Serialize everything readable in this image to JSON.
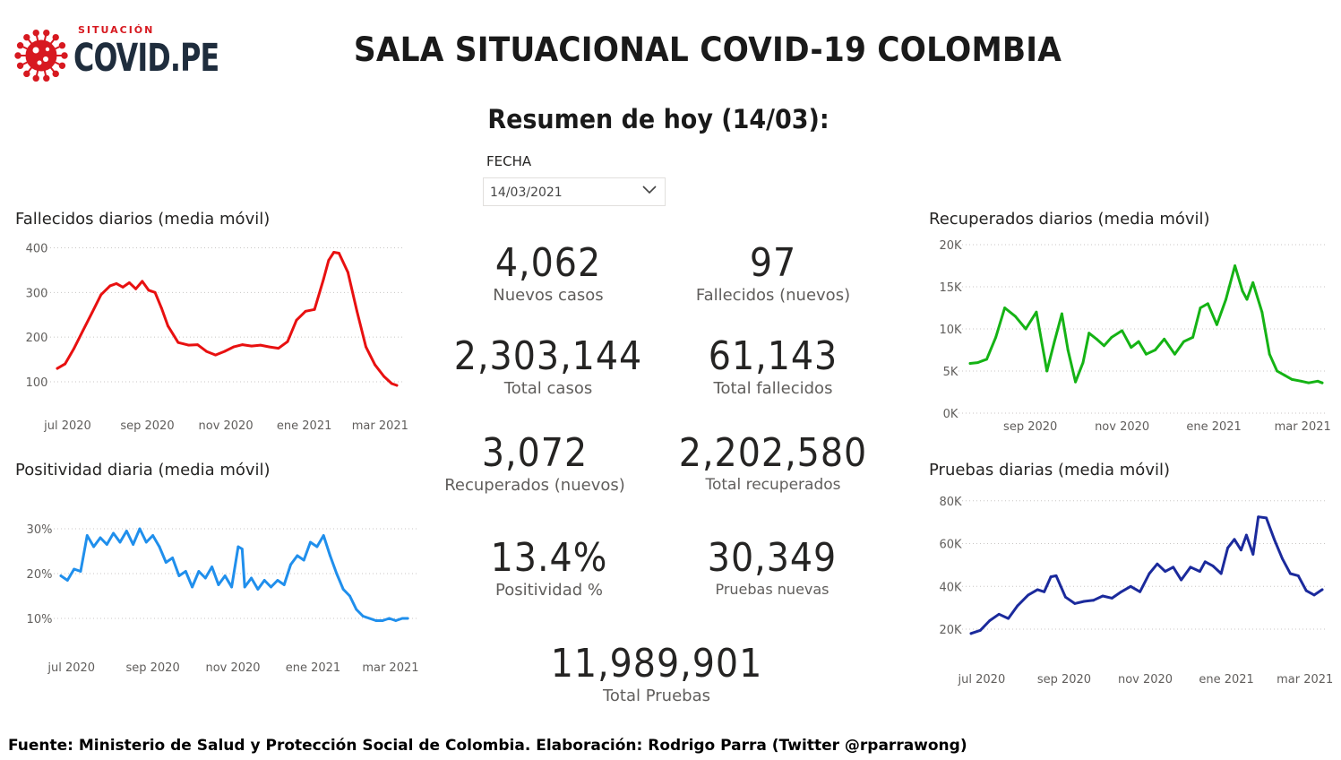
{
  "header": {
    "logo_kicker": "SITUACIÓN",
    "logo_brand": "COVID.PE",
    "logo_colors": {
      "virus": "#d71920",
      "brand": "#1f2d3d"
    },
    "title": "SALA SITUACIONAL COVID-19 COLOMBIA",
    "summary_title": "Resumen de hoy (14/03):"
  },
  "filter": {
    "label": "FECHA",
    "selected": "14/03/2021",
    "icon": "chevron-down-icon"
  },
  "kpis": {
    "new_cases": {
      "value": "4,062",
      "label": "Nuevos casos"
    },
    "new_deaths": {
      "value": "97",
      "label": "Fallecidos (nuevos)"
    },
    "total_cases": {
      "value": "2,303,144",
      "label": "Total casos"
    },
    "total_deaths": {
      "value": "61,143",
      "label": "Total fallecidos"
    },
    "new_recovered": {
      "value": "3,072",
      "label": "Recuperados (nuevos)"
    },
    "total_recovered": {
      "value": "2,202,580",
      "label": "Total recuperados"
    },
    "positivity": {
      "value": "13.4%",
      "label": "Positividad %"
    },
    "new_tests": {
      "value": "30,349",
      "label": "Pruebas nuevas"
    },
    "total_tests": {
      "value": "11,989,901",
      "label": "Total Pruebas"
    }
  },
  "footer": "Fuente: Ministerio de Salud y Protección Social de Colombia. Elaboración: Rodrigo Parra (Twitter @rparrawong)",
  "chart_data": [
    {
      "id": "deaths",
      "type": "line",
      "title": "Fallecidos diarios (media móvil)",
      "color": "#e81010",
      "ylim": [
        90,
        405
      ],
      "yticks": [
        {
          "v": 100,
          "label": "100"
        },
        {
          "v": 200,
          "label": "200"
        },
        {
          "v": 300,
          "label": "300"
        },
        {
          "v": 400,
          "label": "400"
        }
      ],
      "xlim": [
        "2020-06-23",
        "2021-03-14"
      ],
      "xticks": [
        {
          "date": "2020-07-01",
          "label": "jul 2020"
        },
        {
          "date": "2020-09-01",
          "label": "sep 2020"
        },
        {
          "date": "2020-11-01",
          "label": "nov 2020"
        },
        {
          "date": "2021-01-01",
          "label": "ene 2021"
        },
        {
          "date": "2021-03-01",
          "label": "mar 2021"
        }
      ],
      "grid": true,
      "x": [
        "2020-06-23",
        "2020-06-29",
        "2020-07-06",
        "2020-07-13",
        "2020-07-20",
        "2020-07-27",
        "2020-08-03",
        "2020-08-08",
        "2020-08-13",
        "2020-08-18",
        "2020-08-23",
        "2020-08-28",
        "2020-09-02",
        "2020-09-07",
        "2020-09-12",
        "2020-09-17",
        "2020-09-25",
        "2020-10-03",
        "2020-10-10",
        "2020-10-17",
        "2020-10-24",
        "2020-10-31",
        "2020-11-07",
        "2020-11-14",
        "2020-11-21",
        "2020-11-28",
        "2020-12-05",
        "2020-12-12",
        "2020-12-19",
        "2020-12-26",
        "2021-01-02",
        "2021-01-09",
        "2021-01-16",
        "2021-01-20",
        "2021-01-24",
        "2021-01-28",
        "2021-02-04",
        "2021-02-11",
        "2021-02-18",
        "2021-02-25",
        "2021-03-04",
        "2021-03-10",
        "2021-03-14"
      ],
      "y": [
        130,
        140,
        175,
        215,
        255,
        295,
        315,
        320,
        312,
        322,
        308,
        325,
        305,
        300,
        265,
        225,
        188,
        182,
        183,
        168,
        160,
        168,
        178,
        183,
        180,
        182,
        178,
        175,
        190,
        238,
        258,
        262,
        330,
        372,
        390,
        388,
        345,
        258,
        178,
        138,
        112,
        96,
        92
      ]
    },
    {
      "id": "positivity",
      "type": "line",
      "title": "Positividad diaria (media móvil)",
      "color": "#208fec",
      "ylim": [
        8,
        32
      ],
      "yticks": [
        {
          "v": 10,
          "label": "10%"
        },
        {
          "v": 20,
          "label": "20%"
        },
        {
          "v": 30,
          "label": "30%"
        }
      ],
      "xlim": [
        "2020-06-23",
        "2021-03-14"
      ],
      "xticks": [
        {
          "date": "2020-07-01",
          "label": "jul 2020"
        },
        {
          "date": "2020-09-01",
          "label": "sep 2020"
        },
        {
          "date": "2020-11-01",
          "label": "nov 2020"
        },
        {
          "date": "2021-01-01",
          "label": "ene 2021"
        },
        {
          "date": "2021-03-01",
          "label": "mar 2021"
        }
      ],
      "grid": true,
      "x": [
        "2020-06-23",
        "2020-06-28",
        "2020-07-03",
        "2020-07-08",
        "2020-07-13",
        "2020-07-18",
        "2020-07-23",
        "2020-07-28",
        "2020-08-02",
        "2020-08-07",
        "2020-08-12",
        "2020-08-17",
        "2020-08-22",
        "2020-08-27",
        "2020-09-01",
        "2020-09-06",
        "2020-09-11",
        "2020-09-16",
        "2020-09-21",
        "2020-09-26",
        "2020-10-01",
        "2020-10-06",
        "2020-10-11",
        "2020-10-16",
        "2020-10-21",
        "2020-10-26",
        "2020-10-31",
        "2020-11-05",
        "2020-11-08",
        "2020-11-10",
        "2020-11-15",
        "2020-11-20",
        "2020-11-25",
        "2020-11-30",
        "2020-12-05",
        "2020-12-10",
        "2020-12-15",
        "2020-12-20",
        "2020-12-25",
        "2020-12-30",
        "2021-01-04",
        "2021-01-09",
        "2021-01-14",
        "2021-01-19",
        "2021-01-24",
        "2021-01-29",
        "2021-02-03",
        "2021-02-08",
        "2021-02-13",
        "2021-02-18",
        "2021-02-23",
        "2021-02-28",
        "2021-03-05",
        "2021-03-10",
        "2021-03-14"
      ],
      "y": [
        19.5,
        18.5,
        21,
        20.5,
        28.5,
        26,
        28,
        26.5,
        29,
        27,
        29.5,
        26.5,
        30,
        27,
        28.5,
        26,
        22.5,
        23.5,
        19.5,
        20.5,
        17,
        20.5,
        19,
        21.5,
        17.5,
        19.5,
        17,
        26,
        25.5,
        17,
        19,
        16.5,
        18.5,
        17,
        18.5,
        17.5,
        22,
        24,
        23,
        27,
        26,
        28.5,
        24,
        20,
        16.5,
        15,
        12,
        10.5,
        10,
        9.5,
        9.5,
        10,
        9.5,
        10,
        10
      ]
    },
    {
      "id": "recovered",
      "type": "line",
      "title": "Recuperados diarios (media móvil)",
      "color": "#15b315",
      "ylim": [
        0,
        20000
      ],
      "yticks": [
        {
          "v": 0,
          "label": "0K"
        },
        {
          "v": 5000,
          "label": "5K"
        },
        {
          "v": 10000,
          "label": "10K"
        },
        {
          "v": 15000,
          "label": "15K"
        },
        {
          "v": 20000,
          "label": "20K"
        }
      ],
      "xlim": [
        "2020-07-23",
        "2021-03-14"
      ],
      "xticks": [
        {
          "date": "2020-09-01",
          "label": "sep 2020"
        },
        {
          "date": "2020-11-01",
          "label": "nov 2020"
        },
        {
          "date": "2021-01-01",
          "label": "ene 2021"
        },
        {
          "date": "2021-03-01",
          "label": "mar 2021"
        }
      ],
      "grid": true,
      "x": [
        "2020-07-23",
        "2020-07-28",
        "2020-08-03",
        "2020-08-09",
        "2020-08-15",
        "2020-08-22",
        "2020-08-29",
        "2020-09-05",
        "2020-09-12",
        "2020-09-17",
        "2020-09-22",
        "2020-09-26",
        "2020-10-01",
        "2020-10-06",
        "2020-10-10",
        "2020-10-15",
        "2020-10-20",
        "2020-10-25",
        "2020-11-01",
        "2020-11-07",
        "2020-11-12",
        "2020-11-17",
        "2020-11-23",
        "2020-11-29",
        "2020-12-06",
        "2020-12-12",
        "2020-12-18",
        "2020-12-23",
        "2020-12-28",
        "2021-01-03",
        "2021-01-09",
        "2021-01-15",
        "2021-01-20",
        "2021-01-23",
        "2021-01-27",
        "2021-02-02",
        "2021-02-07",
        "2021-02-12",
        "2021-02-17",
        "2021-02-22",
        "2021-02-28",
        "2021-03-05",
        "2021-03-11",
        "2021-03-14"
      ],
      "y": [
        5900,
        6000,
        6400,
        9000,
        12500,
        11500,
        10000,
        12000,
        5000,
        8500,
        11800,
        7500,
        3700,
        6000,
        9500,
        8800,
        8000,
        9000,
        9800,
        7800,
        8500,
        7000,
        7500,
        8800,
        7000,
        8500,
        9000,
        12500,
        13000,
        10500,
        13500,
        17500,
        14500,
        13500,
        15500,
        12000,
        7000,
        5000,
        4500,
        4000,
        3800,
        3600,
        3800,
        3600
      ]
    },
    {
      "id": "tests",
      "type": "line",
      "title": "Pruebas diarias (media móvil)",
      "color": "#1b2a9c",
      "ylim": [
        15000,
        82000
      ],
      "yticks": [
        {
          "v": 20000,
          "label": "20K"
        },
        {
          "v": 40000,
          "label": "40K"
        },
        {
          "v": 60000,
          "label": "60K"
        },
        {
          "v": 80000,
          "label": "80K"
        }
      ],
      "xlim": [
        "2020-06-23",
        "2021-03-14"
      ],
      "xticks": [
        {
          "date": "2020-07-01",
          "label": "jul 2020"
        },
        {
          "date": "2020-09-01",
          "label": "sep 2020"
        },
        {
          "date": "2020-11-01",
          "label": "nov 2020"
        },
        {
          "date": "2021-01-01",
          "label": "ene 2021"
        },
        {
          "date": "2021-03-01",
          "label": "mar 2021"
        }
      ],
      "grid": true,
      "x": [
        "2020-06-23",
        "2020-06-30",
        "2020-07-07",
        "2020-07-14",
        "2020-07-21",
        "2020-07-28",
        "2020-08-05",
        "2020-08-12",
        "2020-08-17",
        "2020-08-22",
        "2020-08-26",
        "2020-09-02",
        "2020-09-09",
        "2020-09-16",
        "2020-09-23",
        "2020-09-30",
        "2020-10-07",
        "2020-10-14",
        "2020-10-21",
        "2020-10-28",
        "2020-11-04",
        "2020-11-10",
        "2020-11-16",
        "2020-11-22",
        "2020-11-28",
        "2020-12-05",
        "2020-12-12",
        "2020-12-16",
        "2020-12-22",
        "2020-12-28",
        "2021-01-02",
        "2021-01-07",
        "2021-01-12",
        "2021-01-16",
        "2021-01-21",
        "2021-01-25",
        "2021-01-31",
        "2021-02-06",
        "2021-02-12",
        "2021-02-18",
        "2021-02-24",
        "2021-03-02",
        "2021-03-08",
        "2021-03-14"
      ],
      "y": [
        18000,
        19500,
        24000,
        27000,
        25000,
        31000,
        36000,
        38500,
        37500,
        44500,
        45000,
        35000,
        32000,
        33000,
        33500,
        35500,
        34500,
        37500,
        40000,
        37500,
        46000,
        50500,
        47000,
        49000,
        43000,
        49000,
        47000,
        51500,
        49500,
        46000,
        58000,
        62000,
        57000,
        64000,
        55000,
        72500,
        72000,
        62000,
        53000,
        46000,
        45000,
        38000,
        36000,
        38500
      ]
    }
  ]
}
